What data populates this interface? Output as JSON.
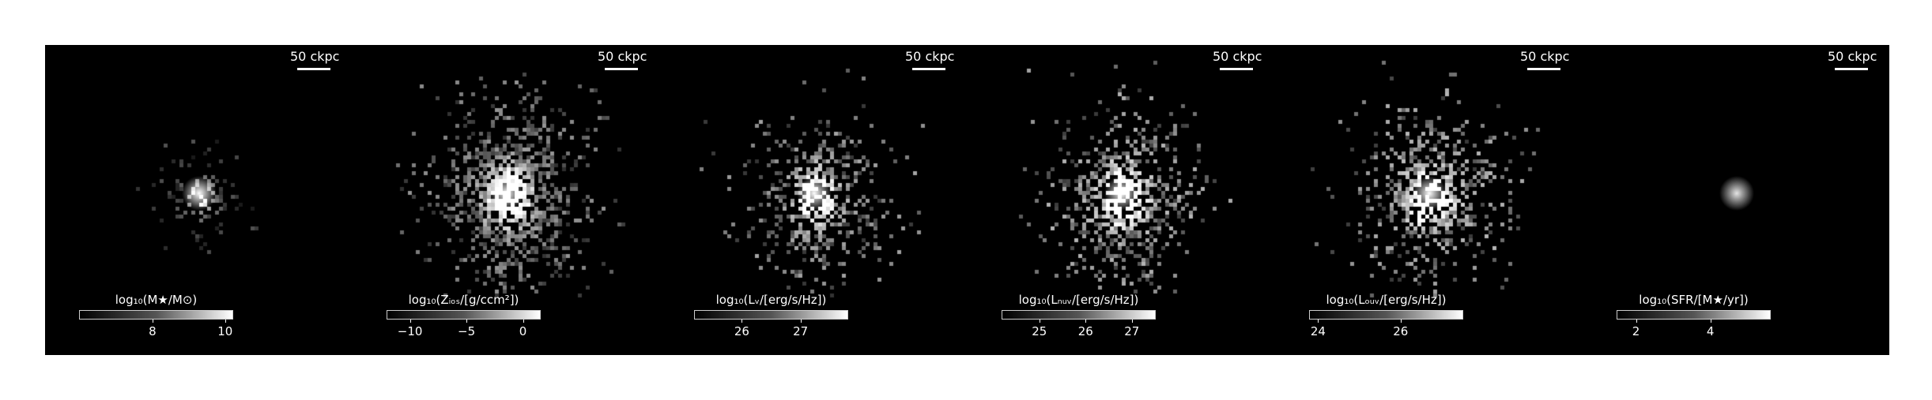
{
  "figure": {
    "panels": [
      {
        "name": "stellar-mass",
        "scalebar": "50 ckpc",
        "colorbar_label": "log₁₀(M★/M⊙)",
        "range": [
          6,
          10.2
        ],
        "ticks": [
          {
            "label": "8",
            "value": 8
          },
          {
            "label": "10",
            "value": 10
          }
        ],
        "density": 0.35,
        "scatter_brightness": 0.25,
        "core_brightness": 1.0,
        "spread": 40
      },
      {
        "name": "metal-surface-density",
        "scalebar": "50 ckpc",
        "colorbar_label": "log₁₀(Zᵢₒₛ/[g/ccm²])",
        "range": [
          -12,
          1.5
        ],
        "ticks": [
          {
            "label": "−10",
            "value": -10
          },
          {
            "label": "−5",
            "value": -5
          },
          {
            "label": "0",
            "value": 0
          }
        ],
        "density": 0.8,
        "scatter_brightness": 0.45,
        "core_brightness": 1.0,
        "spread": 70
      },
      {
        "name": "v-band-luminosity",
        "scalebar": "50 ckpc",
        "colorbar_label": "log₁₀(Lᵥ/[erg/s/Hz])",
        "range": [
          25.2,
          27.8
        ],
        "ticks": [
          {
            "label": "26",
            "value": 26
          },
          {
            "label": "27",
            "value": 27
          }
        ],
        "density": 0.65,
        "scatter_brightness": 0.5,
        "core_brightness": 1.0,
        "spread": 60
      },
      {
        "name": "nuv-luminosity",
        "scalebar": "50 ckpc",
        "colorbar_label": "log₁₀(Lₙᵤᵥ/[erg/s/Hz])",
        "range": [
          24.2,
          27.5
        ],
        "ticks": [
          {
            "label": "25",
            "value": 25
          },
          {
            "label": "26",
            "value": 26
          },
          {
            "label": "27",
            "value": 27
          }
        ],
        "density": 0.72,
        "scatter_brightness": 0.55,
        "core_brightness": 1.0,
        "spread": 65
      },
      {
        "name": "fuv-luminosity",
        "scalebar": "50 ckpc",
        "colorbar_label": "log₁₀(Lₒᵤᵥ/[erg/s/Hz])",
        "range": [
          23.8,
          27.5
        ],
        "ticks": [
          {
            "label": "24",
            "value": 24
          },
          {
            "label": "26",
            "value": 26
          }
        ],
        "density": 0.72,
        "scatter_brightness": 0.55,
        "core_brightness": 1.0,
        "spread": 65
      },
      {
        "name": "star-formation-rate",
        "scalebar": "50 ckpc",
        "colorbar_label": "log₁₀(SFR/[M★/yr])",
        "range": [
          1.5,
          5.6
        ],
        "ticks": [
          {
            "label": "2",
            "value": 2
          },
          {
            "label": "4",
            "value": 4
          }
        ],
        "density": 0.06,
        "scatter_brightness": 0.2,
        "core_brightness": 0.9,
        "spread": 20
      }
    ]
  }
}
